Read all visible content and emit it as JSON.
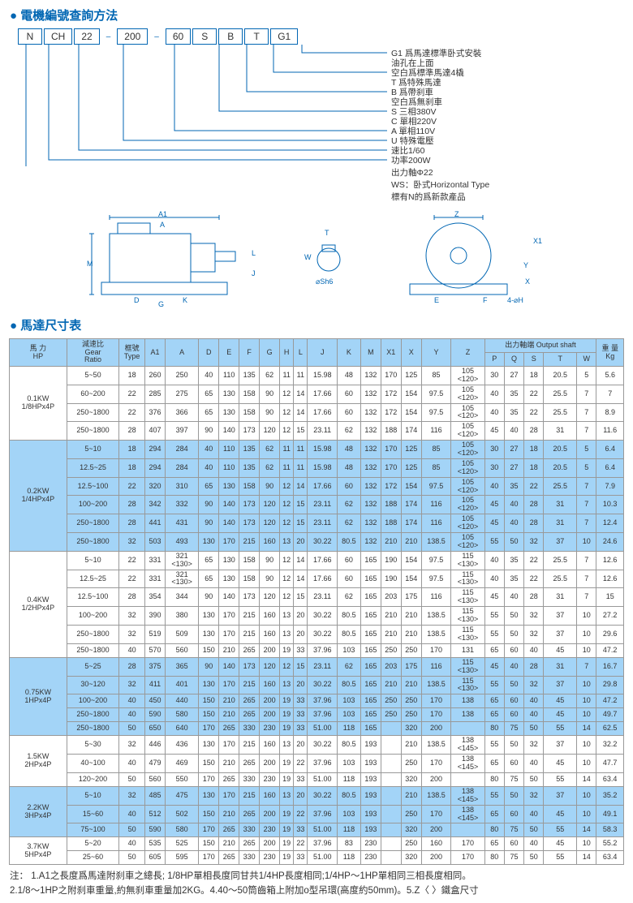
{
  "titles": {
    "t1": "電機編號查詢方法",
    "t2": "馬達尺寸表"
  },
  "model": {
    "parts": [
      "N",
      "CH",
      "22",
      "200",
      "60",
      "S",
      "B",
      "T",
      "G1"
    ],
    "sep": "–"
  },
  "legend": [
    "G1 爲馬達標準卧式安裝",
    "油孔在上面",
    "空白爲標準馬達4橇",
    "T 爲特殊馬達",
    "B  爲帶刹車",
    "空白爲無刹車",
    "S  三相380V",
    "C  單相220V",
    "A  單相110V",
    "U  特殊電壓",
    "速比1/60",
    "功率200W",
    "出力軸Φ22",
    "WS：卧式Horizontal Type",
    "標有N的爲新款產品"
  ],
  "cols": [
    "馬 力\nHP",
    "減速比\nGear\nRatio",
    "框號\nType",
    "A1",
    "A",
    "D",
    "E",
    "F",
    "G",
    "H",
    "L",
    "J",
    "K",
    "M",
    "X1",
    "X",
    "Y",
    "Z",
    "P",
    "Q",
    "S",
    "T",
    "W",
    "重 量\nKg"
  ],
  "subhead": "出力軸端 Output shaft",
  "groups": [
    {
      "hp": "0.1KW\n1/8HPx4P",
      "blue": false,
      "rows": [
        [
          "5~50",
          "18",
          "260",
          "250",
          "40",
          "110",
          "135",
          "62",
          "11",
          "11",
          "15.98",
          "48",
          "132",
          "170",
          "125",
          "85",
          "105\n<120>",
          "30",
          "27",
          "18",
          "20.5",
          "5",
          "5.6"
        ],
        [
          "60~200",
          "22",
          "285",
          "275",
          "65",
          "130",
          "158",
          "90",
          "12",
          "14",
          "17.66",
          "60",
          "132",
          "172",
          "154",
          "97.5",
          "105\n<120>",
          "40",
          "35",
          "22",
          "25.5",
          "7",
          "7"
        ],
        [
          "250~1800",
          "22",
          "376",
          "366",
          "65",
          "130",
          "158",
          "90",
          "12",
          "14",
          "17.66",
          "60",
          "132",
          "172",
          "154",
          "97.5",
          "105\n<120>",
          "40",
          "35",
          "22",
          "25.5",
          "7",
          "8.9"
        ],
        [
          "250~1800",
          "28",
          "407",
          "397",
          "90",
          "140",
          "173",
          "120",
          "12",
          "15",
          "23.11",
          "62",
          "132",
          "188",
          "174",
          "116",
          "105\n<120>",
          "45",
          "40",
          "28",
          "31",
          "7",
          "11.6"
        ]
      ]
    },
    {
      "hp": "0.2KW\n1/4HPx4P",
      "blue": true,
      "rows": [
        [
          "5~10",
          "18",
          "294",
          "284",
          "40",
          "110",
          "135",
          "62",
          "11",
          "11",
          "15.98",
          "48",
          "132",
          "170",
          "125",
          "85",
          "105\n<120>",
          "30",
          "27",
          "18",
          "20.5",
          "5",
          "6.4"
        ],
        [
          "12.5~25",
          "18",
          "294",
          "284",
          "40",
          "110",
          "135",
          "62",
          "11",
          "11",
          "15.98",
          "48",
          "132",
          "170",
          "125",
          "85",
          "105\n<120>",
          "30",
          "27",
          "18",
          "20.5",
          "5",
          "6.4"
        ],
        [
          "12.5~100",
          "22",
          "320",
          "310",
          "65",
          "130",
          "158",
          "90",
          "12",
          "14",
          "17.66",
          "60",
          "132",
          "172",
          "154",
          "97.5",
          "105\n<120>",
          "40",
          "35",
          "22",
          "25.5",
          "7",
          "7.9"
        ],
        [
          "100~200",
          "28",
          "342",
          "332",
          "90",
          "140",
          "173",
          "120",
          "12",
          "15",
          "23.11",
          "62",
          "132",
          "188",
          "174",
          "116",
          "105\n<120>",
          "45",
          "40",
          "28",
          "31",
          "7",
          "10.3"
        ],
        [
          "250~1800",
          "28",
          "441",
          "431",
          "90",
          "140",
          "173",
          "120",
          "12",
          "15",
          "23.11",
          "62",
          "132",
          "188",
          "174",
          "116",
          "105\n<120>",
          "45",
          "40",
          "28",
          "31",
          "7",
          "12.4"
        ],
        [
          "250~1800",
          "32",
          "503",
          "493",
          "130",
          "170",
          "215",
          "160",
          "13",
          "20",
          "30.22",
          "80.5",
          "132",
          "210",
          "210",
          "138.5",
          "105\n<120>",
          "55",
          "50",
          "32",
          "37",
          "10",
          "24.6"
        ]
      ]
    },
    {
      "hp": "0.4KW\n1/2HPx4P",
      "blue": false,
      "rows": [
        [
          "5~10",
          "22",
          "331",
          "321\n<130>",
          "65",
          "130",
          "158",
          "90",
          "12",
          "14",
          "17.66",
          "60",
          "165",
          "190",
          "154",
          "97.5",
          "115\n<130>",
          "40",
          "35",
          "22",
          "25.5",
          "7",
          "12.6"
        ],
        [
          "12.5~25",
          "22",
          "331",
          "321\n<130>",
          "65",
          "130",
          "158",
          "90",
          "12",
          "14",
          "17.66",
          "60",
          "165",
          "190",
          "154",
          "97.5",
          "115\n<130>",
          "40",
          "35",
          "22",
          "25.5",
          "7",
          "12.6"
        ],
        [
          "12.5~100",
          "28",
          "354",
          "344",
          "90",
          "140",
          "173",
          "120",
          "12",
          "15",
          "23.11",
          "62",
          "165",
          "203",
          "175",
          "116",
          "115\n<130>",
          "45",
          "40",
          "28",
          "31",
          "7",
          "15"
        ],
        [
          "100~200",
          "32",
          "390",
          "380",
          "130",
          "170",
          "215",
          "160",
          "13",
          "20",
          "30.22",
          "80.5",
          "165",
          "210",
          "210",
          "138.5",
          "115\n<130>",
          "55",
          "50",
          "32",
          "37",
          "10",
          "27.2"
        ],
        [
          "250~1800",
          "32",
          "519",
          "509",
          "130",
          "170",
          "215",
          "160",
          "13",
          "20",
          "30.22",
          "80.5",
          "165",
          "210",
          "210",
          "138.5",
          "115\n<130>",
          "55",
          "50",
          "32",
          "37",
          "10",
          "29.6"
        ],
        [
          "250~1800",
          "40",
          "570",
          "560",
          "150",
          "210",
          "265",
          "200",
          "19",
          "33",
          "37.96",
          "103",
          "165",
          "250",
          "250",
          "170",
          "131",
          "65",
          "60",
          "40",
          "45",
          "10",
          "47.2"
        ]
      ]
    },
    {
      "hp": "0.75KW\n1HPx4P",
      "blue": true,
      "rows": [
        [
          "5~25",
          "28",
          "375",
          "365",
          "90",
          "140",
          "173",
          "120",
          "12",
          "15",
          "23.11",
          "62",
          "165",
          "203",
          "175",
          "116",
          "115\n<130>",
          "45",
          "40",
          "28",
          "31",
          "7",
          "16.7"
        ],
        [
          "30~120",
          "32",
          "411",
          "401",
          "130",
          "170",
          "215",
          "160",
          "13",
          "20",
          "30.22",
          "80.5",
          "165",
          "210",
          "210",
          "138.5",
          "115\n<130>",
          "55",
          "50",
          "32",
          "37",
          "10",
          "29.8"
        ],
        [
          "100~200",
          "40",
          "450",
          "440",
          "150",
          "210",
          "265",
          "200",
          "19",
          "33",
          "37.96",
          "103",
          "165",
          "250",
          "250",
          "170",
          "138",
          "65",
          "60",
          "40",
          "45",
          "10",
          "47.2"
        ],
        [
          "250~1800",
          "40",
          "590",
          "580",
          "150",
          "210",
          "265",
          "200",
          "19",
          "33",
          "37.96",
          "103",
          "165",
          "250",
          "250",
          "170",
          "138",
          "65",
          "60",
          "40",
          "45",
          "10",
          "49.7"
        ],
        [
          "250~1800",
          "50",
          "650",
          "640",
          "170",
          "265",
          "330",
          "230",
          "19",
          "33",
          "51.00",
          "118",
          "165",
          "",
          "320",
          "200",
          "",
          "80",
          "75",
          "50",
          "55",
          "14",
          "62.5"
        ]
      ]
    },
    {
      "hp": "1.5KW\n2HPx4P",
      "blue": false,
      "rows": [
        [
          "5~30",
          "32",
          "446",
          "436",
          "130",
          "170",
          "215",
          "160",
          "13",
          "20",
          "30.22",
          "80.5",
          "193",
          "",
          "210",
          "138.5",
          "138\n<145>",
          "55",
          "50",
          "32",
          "37",
          "10",
          "32.2"
        ],
        [
          "40~100",
          "40",
          "479",
          "469",
          "150",
          "210",
          "265",
          "200",
          "19",
          "22",
          "37.96",
          "103",
          "193",
          "",
          "250",
          "170",
          "138\n<145>",
          "65",
          "60",
          "40",
          "45",
          "10",
          "47.7"
        ],
        [
          "120~200",
          "50",
          "560",
          "550",
          "170",
          "265",
          "330",
          "230",
          "19",
          "33",
          "51.00",
          "118",
          "193",
          "",
          "320",
          "200",
          "",
          "80",
          "75",
          "50",
          "55",
          "14",
          "63.4"
        ]
      ]
    },
    {
      "hp": "2.2KW\n3HPx4P",
      "blue": true,
      "rows": [
        [
          "5~10",
          "32",
          "485",
          "475",
          "130",
          "170",
          "215",
          "160",
          "13",
          "20",
          "30.22",
          "80.5",
          "193",
          "",
          "210",
          "138.5",
          "138\n<145>",
          "55",
          "50",
          "32",
          "37",
          "10",
          "35.2"
        ],
        [
          "15~60",
          "40",
          "512",
          "502",
          "150",
          "210",
          "265",
          "200",
          "19",
          "22",
          "37.96",
          "103",
          "193",
          "",
          "250",
          "170",
          "138\n<145>",
          "65",
          "60",
          "40",
          "45",
          "10",
          "49.1"
        ],
        [
          "75~100",
          "50",
          "590",
          "580",
          "170",
          "265",
          "330",
          "230",
          "19",
          "33",
          "51.00",
          "118",
          "193",
          "",
          "320",
          "200",
          "",
          "80",
          "75",
          "50",
          "55",
          "14",
          "58.3"
        ]
      ]
    },
    {
      "hp": "3.7KW\n5HPx4P",
      "blue": false,
      "rows": [
        [
          "5~20",
          "40",
          "535",
          "525",
          "150",
          "210",
          "265",
          "200",
          "19",
          "22",
          "37.96",
          "83",
          "230",
          "",
          "250",
          "160",
          "170",
          "65",
          "60",
          "40",
          "45",
          "10",
          "55.2"
        ],
        [
          "25~60",
          "50",
          "605",
          "595",
          "170",
          "265",
          "330",
          "230",
          "19",
          "33",
          "51.00",
          "118",
          "230",
          "",
          "320",
          "200",
          "170",
          "80",
          "75",
          "50",
          "55",
          "14",
          "63.4"
        ]
      ]
    }
  ],
  "note": "注：  1.A1之長度爲馬達附刹車之總長;  1/8HP單相長度同甘共1/4HP長度相同;1/4HP～1HP單相同三相長度相同。\n2.1/8～1HP之附刹車重量,約無刹車重量加2KG。4.40～50筒齒箱上附加o型吊環(高度約50mm)。5.Z〈 〉鐵盒尺寸"
}
